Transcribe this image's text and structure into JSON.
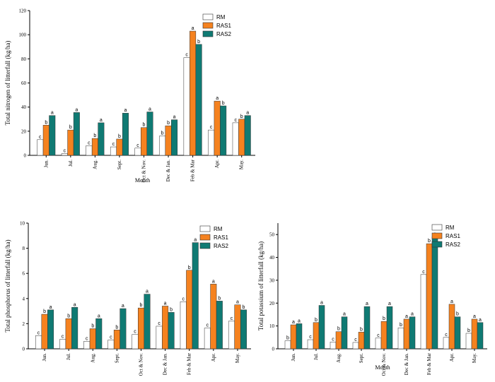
{
  "colors": {
    "RM": "#ffffff",
    "RAS1": "#f5821f",
    "RAS2": "#0f7a73"
  },
  "chart_data": [
    {
      "type": "bar",
      "ylabel": "Total nitrogen of litterfall (kg/ha)",
      "xlabel": "Month",
      "ylim": [
        0,
        120
      ],
      "yticks": [
        0,
        20,
        40,
        60,
        80,
        100,
        120
      ],
      "categories": [
        "Jun.",
        "Jul.",
        "Aug.",
        "Sept.",
        "Oct & Nov.",
        "Dec & Jan.",
        "Feb & Mar",
        "Apr.",
        "May."
      ],
      "legend": [
        "RM",
        "RAS1",
        "RAS2"
      ],
      "series": [
        {
          "name": "RM",
          "values": [
            13,
            1.5,
            8,
            7,
            6,
            16,
            81,
            21,
            27
          ],
          "labels": [
            "c",
            "c",
            "c",
            "c",
            "c",
            "b",
            "c",
            "c",
            "c"
          ]
        },
        {
          "name": "RAS1",
          "values": [
            25,
            21,
            14,
            13.5,
            23,
            24.5,
            103,
            45,
            30
          ],
          "labels": [
            "b",
            "b",
            "b",
            "b",
            "b",
            "b",
            "a",
            "a",
            "b"
          ]
        },
        {
          "name": "RAS2",
          "values": [
            33,
            35.5,
            27,
            35,
            36,
            29.5,
            92,
            41,
            33
          ],
          "labels": [
            "a",
            "a",
            "a",
            "a",
            "a",
            "a",
            "b",
            "b",
            "a"
          ]
        }
      ]
    },
    {
      "type": "bar",
      "ylabel": "Total phosphorus of litterfall (kg/ha)",
      "xlabel": "",
      "ylim": [
        0,
        10
      ],
      "yticks": [
        0,
        2,
        4,
        6,
        8,
        10
      ],
      "categories": [
        "Jun.",
        "Jul.",
        "Aug.",
        "Sept.",
        "Oct & Nov.",
        "Dec & Jan.",
        "Feb & Mar",
        "Apr.",
        "May."
      ],
      "legend": [
        "RM",
        "RAS1",
        "RAS2"
      ],
      "series": [
        {
          "name": "RM",
          "values": [
            1.05,
            0.75,
            0.6,
            0.7,
            1.15,
            1.8,
            3.75,
            1.65,
            2.2
          ],
          "labels": [
            "c",
            "c",
            "c",
            "c",
            "c",
            "c",
            "c",
            "c",
            "c"
          ]
        },
        {
          "name": "RAS1",
          "values": [
            2.75,
            2.4,
            1.6,
            1.5,
            3.25,
            3.4,
            6.25,
            5.15,
            3.5
          ],
          "labels": [
            "b",
            "b",
            "b",
            "b",
            "b",
            "a",
            "b",
            "a",
            "a"
          ]
        },
        {
          "name": "RAS2",
          "values": [
            3.1,
            3.3,
            2.4,
            3.2,
            4.35,
            2.9,
            8.45,
            3.8,
            3.1
          ],
          "labels": [
            "a",
            "a",
            "a",
            "a",
            "a",
            "b",
            "a",
            "b",
            "b"
          ]
        }
      ]
    },
    {
      "type": "bar",
      "ylabel": "Total potassium of litterfall (kg/ha)",
      "xlabel": "Month",
      "ylim": [
        0,
        55
      ],
      "yticks": [
        0,
        10,
        20,
        30,
        40,
        50
      ],
      "categories": [
        "Jun.",
        "Jul.",
        "Aug.",
        "Sept.",
        "Oct & Nov.",
        "Dec & Jan.",
        "Feb & Mar",
        "Apr.",
        "May."
      ],
      "legend": [
        "RM",
        "RAS1",
        "RAS2"
      ],
      "series": [
        {
          "name": "RM",
          "values": [
            3.5,
            4,
            3,
            2.8,
            4.7,
            9.2,
            32.5,
            5,
            6.8
          ],
          "labels": [
            "b",
            "c",
            "c",
            "c",
            "c",
            "b",
            "c",
            "c",
            "b"
          ]
        },
        {
          "name": "RAS1",
          "values": [
            10.5,
            11.5,
            7.5,
            7.3,
            12,
            13,
            46,
            19.5,
            13
          ],
          "labels": [
            "a",
            "b",
            "b",
            "b",
            "b",
            "a",
            "b",
            "a",
            "a"
          ]
        },
        {
          "name": "RAS2",
          "values": [
            11,
            19,
            14,
            18.5,
            18.5,
            14,
            49,
            14,
            11.5
          ],
          "labels": [
            "a",
            "a",
            "a",
            "a",
            "a",
            "a",
            "a",
            "b",
            "a"
          ]
        }
      ]
    }
  ]
}
